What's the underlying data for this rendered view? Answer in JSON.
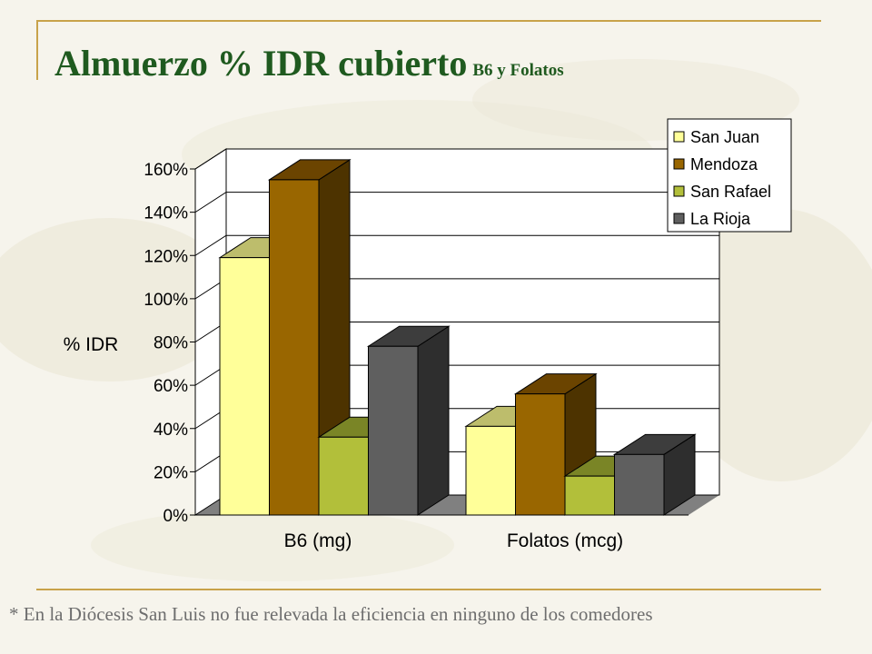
{
  "header": {
    "title": "Almuerzo % IDR cubierto",
    "subtitle": "B6 y Folatos"
  },
  "footnote": "* En la Diócesis San Luis no fue relevada la eficiencia en ninguno de los comedores",
  "chart_data": {
    "type": "bar",
    "ylabel": "% IDR",
    "ylim": [
      0,
      160
    ],
    "yticks": [
      0,
      20,
      40,
      60,
      80,
      100,
      120,
      140,
      160
    ],
    "ytick_labels": [
      "0%",
      "20%",
      "40%",
      "60%",
      "80%",
      "100%",
      "120%",
      "140%",
      "160%"
    ],
    "categories": [
      "B6 (mg)",
      "Folatos (mcg)"
    ],
    "series": [
      {
        "name": "San Juan",
        "values": [
          119,
          41
        ],
        "color": "#ffff99",
        "top": "#bdbd6c",
        "side": "#8c8c4a"
      },
      {
        "name": "Mendoza",
        "values": [
          155,
          56
        ],
        "color": "#996600",
        "top": "#6b4400",
        "side": "#4d3300"
      },
      {
        "name": "San Rafael",
        "values": [
          36,
          18
        ],
        "color": "#b2bf3a",
        "top": "#7a8526",
        "side": "#5a621a"
      },
      {
        "name": "La Rioja",
        "values": [
          78,
          28
        ],
        "color": "#5f5f5f",
        "top": "#3d3d3d",
        "side": "#2e2e2e"
      }
    ],
    "grid": true,
    "three_d": true,
    "legend_position": "top-right"
  }
}
